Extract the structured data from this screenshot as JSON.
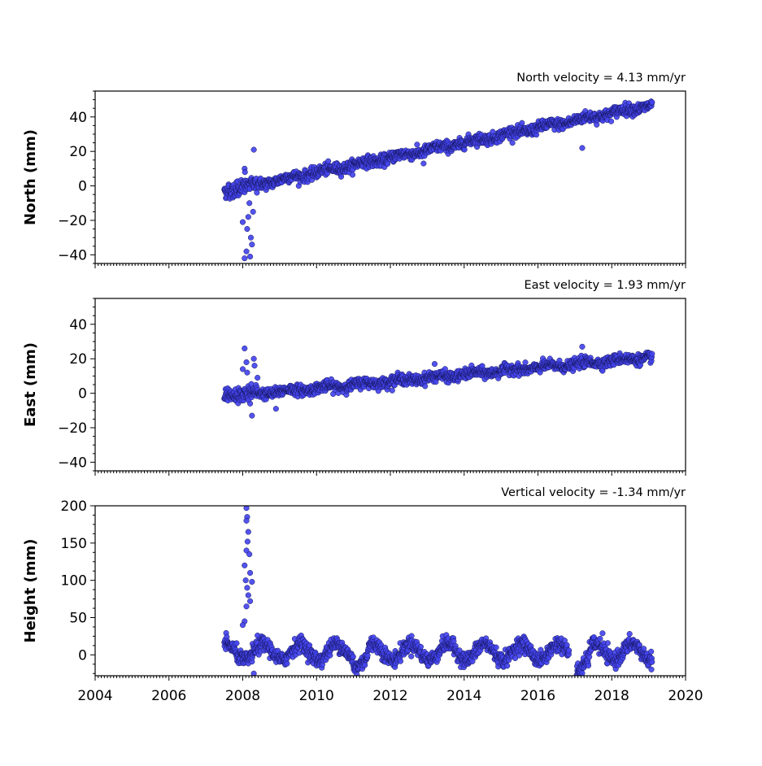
{
  "chart_data": [
    {
      "type": "scatter",
      "panel": "north",
      "annotation": "North velocity = 4.13 mm/yr",
      "ylabel": "North (mm)",
      "xlim": [
        2004,
        2020
      ],
      "ylim": [
        -45,
        55
      ],
      "yticks": [
        -40,
        -20,
        0,
        20,
        40
      ],
      "yticklabels": [
        "−40",
        "−20",
        "0",
        "20",
        "40"
      ],
      "marker_color": "#4444ee",
      "velocity_mm_per_yr": 4.13,
      "x_range": [
        2007.5,
        2019.1
      ],
      "baseline": {
        "x": [
          2007.5,
          2019.1
        ],
        "y": [
          -3,
          47
        ]
      },
      "noise_mm": 1.6,
      "outliers": [
        {
          "x": 2008.05,
          "y": -42
        },
        {
          "x": 2008.1,
          "y": -38
        },
        {
          "x": 2008.2,
          "y": -41
        },
        {
          "x": 2008.22,
          "y": -30
        },
        {
          "x": 2008.25,
          "y": -34
        },
        {
          "x": 2008.0,
          "y": -21
        },
        {
          "x": 2008.15,
          "y": -18
        },
        {
          "x": 2008.28,
          "y": -15
        },
        {
          "x": 2008.12,
          "y": -25
        },
        {
          "x": 2008.05,
          "y": 10
        },
        {
          "x": 2008.06,
          "y": 8
        },
        {
          "x": 2008.3,
          "y": 21
        },
        {
          "x": 2008.18,
          "y": -10
        },
        {
          "x": 2017.2,
          "y": 22
        },
        {
          "x": 2012.9,
          "y": 13
        }
      ]
    },
    {
      "type": "scatter",
      "panel": "east",
      "annotation": "East velocity = 1.93 mm/yr",
      "ylabel": "East (mm)",
      "xlim": [
        2004,
        2020
      ],
      "ylim": [
        -45,
        55
      ],
      "yticks": [
        -40,
        -20,
        0,
        20,
        40
      ],
      "yticklabels": [
        "−40",
        "−20",
        "0",
        "20",
        "40"
      ],
      "marker_color": "#4444ee",
      "velocity_mm_per_yr": 1.93,
      "x_range": [
        2007.5,
        2019.1
      ],
      "baseline": {
        "x": [
          2007.5,
          2019.1
        ],
        "y": [
          -2,
          21
        ]
      },
      "noise_mm": 1.5,
      "outliers": [
        {
          "x": 2008.05,
          "y": 26
        },
        {
          "x": 2008.1,
          "y": 18
        },
        {
          "x": 2008.3,
          "y": 20
        },
        {
          "x": 2008.32,
          "y": 16
        },
        {
          "x": 2008.12,
          "y": 12
        },
        {
          "x": 2008.0,
          "y": 14
        },
        {
          "x": 2008.25,
          "y": -13
        },
        {
          "x": 2008.9,
          "y": -9
        },
        {
          "x": 2008.2,
          "y": -6
        },
        {
          "x": 2017.2,
          "y": 27
        },
        {
          "x": 2013.2,
          "y": 17
        },
        {
          "x": 2008.4,
          "y": 9
        }
      ]
    },
    {
      "type": "scatter",
      "panel": "height",
      "annotation": "Vertical velocity = -1.34 mm/yr",
      "ylabel": "Height (mm)",
      "xlim": [
        2004,
        2020
      ],
      "ylim": [
        -28,
        200
      ],
      "yticks": [
        0,
        50,
        100,
        150,
        200
      ],
      "yticklabels": [
        "0",
        "50",
        "100",
        "150",
        "200"
      ],
      "xticks": [
        2004,
        2006,
        2008,
        2010,
        2012,
        2014,
        2016,
        2018,
        2020
      ],
      "xticklabels": [
        "2004",
        "2006",
        "2008",
        "2010",
        "2012",
        "2014",
        "2016",
        "2018",
        "2020"
      ],
      "marker_color": "#4444ee",
      "velocity_mm_per_yr": -1.34,
      "x_range": [
        2007.5,
        2019.1
      ],
      "seasonal_amplitude_mm": 11,
      "noise_mm": 5,
      "outliers": [
        {
          "x": 2008.1,
          "y": 197
        },
        {
          "x": 2008.12,
          "y": 185
        },
        {
          "x": 2008.1,
          "y": 180
        },
        {
          "x": 2008.15,
          "y": 165
        },
        {
          "x": 2008.13,
          "y": 152
        },
        {
          "x": 2008.1,
          "y": 140
        },
        {
          "x": 2008.18,
          "y": 135
        },
        {
          "x": 2008.05,
          "y": 120
        },
        {
          "x": 2008.2,
          "y": 110
        },
        {
          "x": 2008.08,
          "y": 100
        },
        {
          "x": 2008.25,
          "y": 98
        },
        {
          "x": 2008.12,
          "y": 90
        },
        {
          "x": 2008.15,
          "y": 80
        },
        {
          "x": 2008.2,
          "y": 72
        },
        {
          "x": 2008.1,
          "y": 65
        },
        {
          "x": 2008.05,
          "y": 45
        },
        {
          "x": 2008.0,
          "y": 40
        },
        {
          "x": 2008.3,
          "y": -25
        },
        {
          "x": 2017.75,
          "y": 29
        },
        {
          "x": 2008.4,
          "y": 26
        }
      ]
    }
  ]
}
